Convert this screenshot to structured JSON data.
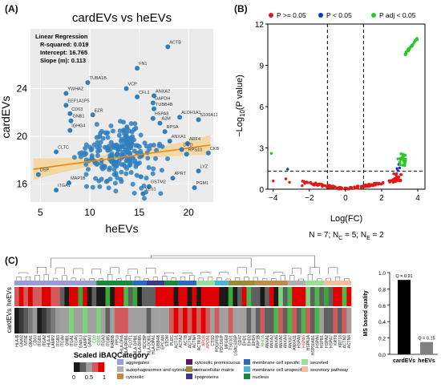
{
  "panels": {
    "a": "(A)",
    "b": "(B)",
    "c": "(C)"
  },
  "chart_data": [
    {
      "type": "scatter",
      "title": "cardEVs vs heEVs",
      "xlabel": "heEVs",
      "ylabel": "cardEVs",
      "xlim": [
        4,
        22.5
      ],
      "ylim": [
        14.5,
        29
      ],
      "xticks": [
        5,
        10,
        15,
        20
      ],
      "yticks": [
        16,
        20,
        24
      ],
      "grid": true,
      "colors": {
        "points": "#2f7fbf",
        "fit": "#e08a1e",
        "band": "#f6d596",
        "panel_bg": "#ebebeb"
      },
      "regression": {
        "title": "Linear Regression",
        "r_squared": "R-squared: 0.019",
        "intercept": "Intercept: 16.765",
        "slope": "Slope (m): 0.113",
        "intercept_value": 16.765,
        "slope_value": 0.113
      },
      "labeled_points": [
        {
          "label": "ACTB",
          "x": 17.9,
          "y": 27.5
        },
        {
          "label": "FN1",
          "x": 14.8,
          "y": 25.7
        },
        {
          "label": "TUBA1B",
          "x": 9.8,
          "y": 24.5
        },
        {
          "label": "VCP",
          "x": 13.7,
          "y": 24.0
        },
        {
          "label": "YWHAZ",
          "x": 7.6,
          "y": 23.6
        },
        {
          "label": "ANXA2",
          "x": 16.5,
          "y": 23.4
        },
        {
          "label": "CFL1",
          "x": 14.8,
          "y": 23.3
        },
        {
          "label": "GAPDH",
          "x": 16.4,
          "y": 22.8
        },
        {
          "label": "EEF1A1P5",
          "x": 7.6,
          "y": 22.6
        },
        {
          "label": "TUBB4B",
          "x": 16.5,
          "y": 22.3
        },
        {
          "label": "ALDH1A1",
          "x": 19.1,
          "y": 21.6
        },
        {
          "label": "S100A11",
          "x": 21.0,
          "y": 21.4
        },
        {
          "label": "CD63",
          "x": 8.0,
          "y": 21.9
        },
        {
          "label": "EZR",
          "x": 10.3,
          "y": 21.8
        },
        {
          "label": "HSPA8",
          "x": 16.4,
          "y": 21.5
        },
        {
          "label": "GNB1",
          "x": 8.1,
          "y": 21.3
        },
        {
          "label": "A2M",
          "x": 17.1,
          "y": 21.1
        },
        {
          "label": "IGHG4",
          "x": 8.0,
          "y": 20.5
        },
        {
          "label": "RPSA",
          "x": 17.6,
          "y": 20.4
        },
        {
          "label": "ANXA1",
          "x": 18.1,
          "y": 19.6
        },
        {
          "label": "ARF4",
          "x": 19.9,
          "y": 19.4
        },
        {
          "label": "CLTC",
          "x": 6.6,
          "y": 18.7
        },
        {
          "label": "RPS10",
          "x": 19.8,
          "y": 18.5
        },
        {
          "label": "CKB",
          "x": 22.0,
          "y": 18.6
        },
        {
          "label": "DCD",
          "x": 19.3,
          "y": 18.9
        },
        {
          "label": "DSP",
          "x": 4.8,
          "y": 16.8
        },
        {
          "label": "APRT",
          "x": 18.4,
          "y": 16.5
        },
        {
          "label": "LYZ",
          "x": 21.0,
          "y": 17.1
        },
        {
          "label": "ITGA1",
          "x": 6.6,
          "y": 15.5
        },
        {
          "label": "PGM1",
          "x": 20.6,
          "y": 15.7
        },
        {
          "label": "MAP1B",
          "x": 7.9,
          "y": 16.1
        },
        {
          "label": "GSTM2",
          "x": 16.0,
          "y": 15.8
        },
        {
          "label": "YES1",
          "x": 15.4,
          "y": 15.2
        }
      ]
    },
    {
      "type": "scatter",
      "title": "",
      "xlabel": "Log(FC)",
      "ylabel": "−Log10(P value)",
      "xlim": [
        -4.3,
        4.4
      ],
      "ylim": [
        0,
        12
      ],
      "xticks": [
        -4,
        -2,
        0,
        2,
        4
      ],
      "yticks": [
        0,
        3,
        6,
        9,
        12
      ],
      "thresholds": {
        "fc": [
          -1,
          1
        ],
        "p": 1.3
      },
      "legend_position": "top",
      "series": [
        {
          "name": "P >= 0.05",
          "color": "#e01818"
        },
        {
          "name": "P < 0.05",
          "color": "#1830d8"
        },
        {
          "name": "P adj < 0.05",
          "color": "#28c828"
        }
      ],
      "caption": "N = 7; NC = 5; NE = 2",
      "caption_parts": {
        "n": "N = 7; N",
        "c": "C",
        "mid": " = 5; N",
        "e": "E",
        "end": " = 2"
      }
    },
    {
      "type": "heatmap",
      "rows": [
        "heEVs",
        "cardEVs"
      ],
      "colorbar_title": "Scaled iBAQ",
      "colorbar_ticks": [
        "0",
        "0.5",
        "1"
      ],
      "colorscale": [
        "#1a1a1a",
        "#606060",
        "#a0a0a0",
        "#d25a5a",
        "#e00000"
      ],
      "legend_title": "Category",
      "categories": [
        {
          "name": "aggregates",
          "color": "#9b9bd8"
        },
        {
          "name": "autophagosomes and cytoskeleton",
          "color": "#b0b0b0"
        },
        {
          "name": "cytosolic",
          "color": "#c08a4a"
        },
        {
          "name": "cytosolic promiscuous",
          "color": "#5a1a5a"
        },
        {
          "name": "extracellular matrix",
          "color": "#9a8a3a"
        },
        {
          "name": "lipoproteins",
          "color": "#3a3a8a"
        },
        {
          "name": "membrane cell specific",
          "color": "#2a6abf"
        },
        {
          "name": "membrane cell unspecific",
          "color": "#4ab4d8"
        },
        {
          "name": "nucleus",
          "color": "#1a8a3a"
        },
        {
          "name": "secreted",
          "color": "#98e098"
        },
        {
          "name": "secretory pathway",
          "color": "#f0c0a0"
        }
      ],
      "column_labels": [
        {
          "label": "HLA-B",
          "color": "#222222"
        },
        {
          "label": "GNAI2",
          "color": "#222222"
        },
        {
          "label": "NT5E",
          "color": "#222222"
        },
        {
          "label": "GNAI1",
          "color": "#222222"
        },
        {
          "label": "CD63",
          "color": "#222222"
        },
        {
          "label": "ITGB1",
          "color": "#222222"
        },
        {
          "label": "ITGA2",
          "color": "#222222"
        },
        {
          "label": "HLA-A",
          "color": "#222222"
        },
        {
          "label": "LAMP2",
          "color": "#222222"
        },
        {
          "label": "ITGB3",
          "color": "#222222"
        },
        {
          "label": "ITGAV",
          "color": "#222222"
        },
        {
          "label": "GNB1",
          "color": "#222222"
        },
        {
          "label": "ITGA1",
          "color": "#222222"
        },
        {
          "label": "ITGA5",
          "color": "#222222"
        },
        {
          "label": "GNA13",
          "color": "#222222"
        },
        {
          "label": "LAMP1",
          "color": "#222222"
        },
        {
          "label": "GNAI3",
          "color": "#222222"
        },
        {
          "label": "CD9",
          "color": "#22aa22"
        },
        {
          "label": "CD81",
          "color": "#22aa22"
        },
        {
          "label": "ITGA3",
          "color": "#222222"
        },
        {
          "label": "ITGB5",
          "color": "#222222"
        },
        {
          "label": "RAB5B",
          "color": "#222222"
        },
        {
          "label": "RPL6",
          "color": "#222222"
        },
        {
          "label": "HLA-DRA",
          "color": "#222222"
        },
        {
          "label": "HLA-DRB1",
          "color": "#222222"
        },
        {
          "label": "FLOT1",
          "color": "#222222"
        },
        {
          "label": "HLA-DPB1",
          "color": "#222222"
        },
        {
          "label": "HLA-DRB5",
          "color": "#222222"
        },
        {
          "label": "SDCBP",
          "color": "#222222"
        },
        {
          "label": "HLA-DQB1",
          "color": "#222222"
        },
        {
          "label": "HLA-DPA1",
          "color": "#222222"
        },
        {
          "label": "TUBB4B",
          "color": "#222222"
        },
        {
          "label": "EPCAM",
          "color": "#222222"
        },
        {
          "label": "STOM",
          "color": "#222222"
        },
        {
          "label": "PLEC",
          "color": "#222222"
        },
        {
          "label": "ACTG1",
          "color": "#222222"
        },
        {
          "label": "ACTA2",
          "color": "#222222"
        },
        {
          "label": "ACTB",
          "color": "#222222"
        },
        {
          "label": "ACTN1",
          "color": "#222222"
        },
        {
          "label": "ACTN4",
          "color": "#222222"
        },
        {
          "label": "ACTR10",
          "color": "#222222"
        },
        {
          "label": "APOB",
          "color": "#dd2222"
        },
        {
          "label": "APOA1",
          "color": "#dd2222"
        },
        {
          "label": "CTSD",
          "color": "#222222"
        },
        {
          "label": "PDGFRB",
          "color": "#222222"
        },
        {
          "label": "PDCD6IP",
          "color": "#222222"
        },
        {
          "label": "MFGE8",
          "color": "#222222"
        },
        {
          "label": "TSG101",
          "color": "#222222"
        },
        {
          "label": "LGALS3BP",
          "color": "#222222"
        },
        {
          "label": "CD47",
          "color": "#222222"
        },
        {
          "label": "EHD1",
          "color": "#222222"
        },
        {
          "label": "EHD2",
          "color": "#222222"
        },
        {
          "label": "EHD4",
          "color": "#222222"
        },
        {
          "label": "RAP1B",
          "color": "#222222"
        },
        {
          "label": "RHOA",
          "color": "#22aa22"
        },
        {
          "label": "ANXA1",
          "color": "#222222"
        },
        {
          "label": "ANXA2",
          "color": "#222222"
        },
        {
          "label": "ANXA5",
          "color": "#222222"
        },
        {
          "label": "ANXA6",
          "color": "#222222"
        },
        {
          "label": "ANXA4",
          "color": "#222222"
        },
        {
          "label": "ANXA7",
          "color": "#222222"
        },
        {
          "label": "ANXA11",
          "color": "#222222"
        },
        {
          "label": "HSPA8",
          "color": "#222222"
        },
        {
          "label": "HSPA5",
          "color": "#dd2222"
        },
        {
          "label": "HSPA1A",
          "color": "#222222"
        },
        {
          "label": "HSP90AB1",
          "color": "#222222"
        },
        {
          "label": "HSPA6",
          "color": "#222222"
        },
        {
          "label": "HSPB1",
          "color": "#222222"
        },
        {
          "label": "HSPA2",
          "color": "#222222"
        },
        {
          "label": "HSPA7",
          "color": "#222222"
        },
        {
          "label": "KRT8",
          "color": "#222222"
        },
        {
          "label": "KRT18",
          "color": "#222222"
        },
        {
          "label": "ACTN2",
          "color": "#222222"
        },
        {
          "label": "ACTN4",
          "color": "#222222"
        }
      ]
    },
    {
      "type": "bar",
      "categories": [
        "cardEVs",
        "heEVs"
      ],
      "values": [
        0.91,
        0.15
      ],
      "data_labels": [
        "Q = 0.91",
        "Q = 0.15"
      ],
      "ylabel": "MS based quality",
      "ylim": [
        0,
        1.0
      ],
      "yticks": [
        "0.0",
        "0.2",
        "0.4",
        "0.6",
        "0.8",
        "1.0"
      ],
      "colors": [
        "#000000",
        "#808080"
      ]
    }
  ]
}
